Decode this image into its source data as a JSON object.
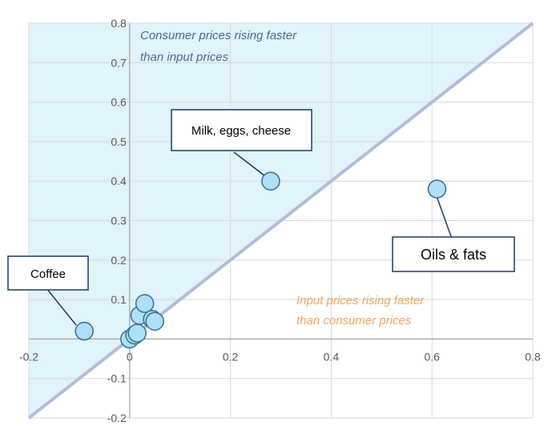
{
  "chart_data": {
    "type": "scatter",
    "xlim": [
      -0.2,
      0.8
    ],
    "ylim": [
      -0.2,
      0.8
    ],
    "x_ticks": [
      "-0.2",
      "0",
      "0.2",
      "0.4",
      "0.6",
      "0.8"
    ],
    "y_ticks": [
      "-0.2",
      "-0.1",
      "0",
      "0.1",
      "0.2",
      "0.3",
      "0.4",
      "0.5",
      "0.6",
      "0.7",
      "0.8"
    ],
    "grid": true,
    "reference_line": "y = x",
    "points": [
      {
        "x": -0.09,
        "y": 0.02,
        "label": "Coffee"
      },
      {
        "x": 0.28,
        "y": 0.4,
        "label": "Milk, eggs, cheese"
      },
      {
        "x": 0.61,
        "y": 0.38,
        "label": "Oils & fats"
      },
      {
        "x": 0.0,
        "y": 0.0
      },
      {
        "x": 0.01,
        "y": 0.01
      },
      {
        "x": 0.015,
        "y": 0.015
      },
      {
        "x": 0.02,
        "y": 0.06
      },
      {
        "x": 0.03,
        "y": 0.09
      },
      {
        "x": 0.045,
        "y": 0.05
      },
      {
        "x": 0.05,
        "y": 0.045
      }
    ],
    "annotations": {
      "upper": [
        "Consumer prices rising faster",
        "than input prices"
      ],
      "lower": [
        "Input prices rising faster",
        "than consumer prices"
      ]
    },
    "colors": {
      "region_fill": "#e1f3fb",
      "reference_line": "#b3bcd6",
      "point_fill": "#aee0f7",
      "point_stroke": "#3a6c8f",
      "grid": "#d9d9d9",
      "upper_text": "#4a6a8a",
      "lower_text": "#f4a460",
      "callout_border": "#1f3a5a"
    }
  }
}
